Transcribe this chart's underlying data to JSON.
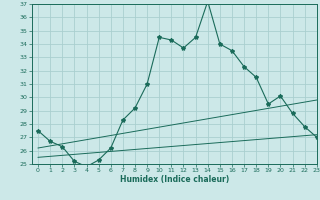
{
  "title": "",
  "xlabel": "Humidex (Indice chaleur)",
  "ylabel": "",
  "bg_color": "#cce8e8",
  "grid_color": "#aacfcf",
  "line_color": "#1a6b5a",
  "x_min": -0.5,
  "x_max": 23,
  "y_min": 25,
  "y_max": 37,
  "x_ticks": [
    0,
    1,
    2,
    3,
    4,
    5,
    6,
    7,
    8,
    9,
    10,
    11,
    12,
    13,
    14,
    15,
    16,
    17,
    18,
    19,
    20,
    21,
    22,
    23
  ],
  "y_ticks": [
    25,
    26,
    27,
    28,
    29,
    30,
    31,
    32,
    33,
    34,
    35,
    36,
    37
  ],
  "main_x": [
    0,
    1,
    2,
    3,
    4,
    5,
    6,
    7,
    8,
    9,
    10,
    11,
    12,
    13,
    14,
    15,
    16,
    17,
    18,
    19,
    20,
    21,
    22,
    23
  ],
  "main_y": [
    27.5,
    26.7,
    26.3,
    25.2,
    24.8,
    25.3,
    26.2,
    28.3,
    29.2,
    31.0,
    34.5,
    34.3,
    33.7,
    34.5,
    37.2,
    34.0,
    33.5,
    32.3,
    31.5,
    29.5,
    30.1,
    28.8,
    27.8,
    27.0
  ],
  "line2_x": [
    0,
    23
  ],
  "line2_y": [
    26.2,
    29.8
  ],
  "line3_x": [
    0,
    23
  ],
  "line3_y": [
    25.5,
    27.2
  ]
}
